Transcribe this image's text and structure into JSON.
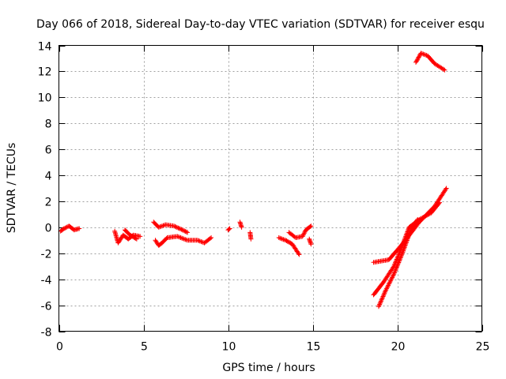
{
  "chart_data": {
    "type": "scatter",
    "title": "Day 066 of 2018, Sidereal Day-to-day VTEC variation (SDTVAR) for receiver esqu",
    "xlabel": "GPS time / hours",
    "ylabel": "SDTVAR / TECUs",
    "xlim": [
      0,
      25
    ],
    "ylim": [
      -8,
      14
    ],
    "xticks": [
      0,
      5,
      10,
      15,
      20,
      25
    ],
    "yticks": [
      -8,
      -6,
      -4,
      -2,
      0,
      2,
      4,
      6,
      8,
      10,
      12,
      14
    ],
    "xtick_labels": [
      "0",
      "5",
      "10",
      "15",
      "20",
      "25"
    ],
    "ytick_labels": [
      "-8",
      "-6",
      "-4",
      "-2",
      "0",
      "2",
      "4",
      "6",
      "8",
      "10",
      "12",
      "14"
    ],
    "grid": true,
    "marker": "plus",
    "marker_color": "#ff0000",
    "note": "Series are traced point trails (approximate vertices read from the plot); markers are drawn densely along each trail.",
    "series": [
      {
        "name": "arc-a",
        "points": [
          [
            0.1,
            -0.3
          ],
          [
            0.3,
            -0.1
          ],
          [
            0.6,
            0.1
          ],
          [
            0.9,
            -0.2
          ],
          [
            1.2,
            -0.1
          ]
        ]
      },
      {
        "name": "arc-b",
        "points": [
          [
            3.3,
            -0.3
          ],
          [
            3.5,
            -1.2
          ],
          [
            3.8,
            -0.6
          ],
          [
            4.1,
            -0.9
          ],
          [
            4.4,
            -0.6
          ],
          [
            4.8,
            -0.7
          ]
        ]
      },
      {
        "name": "arc-c",
        "points": [
          [
            3.9,
            -0.2
          ],
          [
            4.2,
            -0.6
          ],
          [
            4.6,
            -0.9
          ]
        ]
      },
      {
        "name": "arc-d",
        "points": [
          [
            5.6,
            0.4
          ],
          [
            5.9,
            0.0
          ],
          [
            6.3,
            0.2
          ],
          [
            6.8,
            0.1
          ],
          [
            7.3,
            -0.2
          ],
          [
            7.6,
            -0.4
          ]
        ]
      },
      {
        "name": "arc-e",
        "points": [
          [
            5.7,
            -1.0
          ],
          [
            5.9,
            -1.4
          ],
          [
            6.1,
            -1.2
          ],
          [
            6.4,
            -0.8
          ],
          [
            7.0,
            -0.7
          ],
          [
            7.6,
            -1.0
          ],
          [
            8.2,
            -1.0
          ],
          [
            8.6,
            -1.2
          ],
          [
            9.0,
            -0.8
          ]
        ]
      },
      {
        "name": "arc-f",
        "points": [
          [
            10.0,
            -0.2
          ],
          [
            10.1,
            -0.1
          ]
        ]
      },
      {
        "name": "arc-g",
        "points": [
          [
            10.7,
            0.4
          ],
          [
            10.8,
            0.0
          ]
        ]
      },
      {
        "name": "arc-h",
        "points": [
          [
            11.3,
            -0.4
          ],
          [
            11.35,
            -0.9
          ]
        ]
      },
      {
        "name": "arc-i",
        "points": [
          [
            13.0,
            -0.8
          ],
          [
            13.4,
            -1.0
          ],
          [
            13.8,
            -1.3
          ],
          [
            14.2,
            -2.1
          ]
        ]
      },
      {
        "name": "arc-j",
        "points": [
          [
            13.6,
            -0.4
          ],
          [
            14.0,
            -0.8
          ],
          [
            14.4,
            -0.7
          ],
          [
            14.6,
            -0.2
          ],
          [
            14.9,
            0.1
          ]
        ]
      },
      {
        "name": "arc-k",
        "points": [
          [
            14.8,
            -0.9
          ],
          [
            14.9,
            -1.3
          ]
        ]
      },
      {
        "name": "arc-l",
        "points": [
          [
            18.6,
            -2.7
          ],
          [
            19.5,
            -2.5
          ],
          [
            20.1,
            -1.6
          ],
          [
            20.6,
            -0.8
          ],
          [
            21.3,
            0.4
          ],
          [
            22.2,
            1.6
          ],
          [
            22.9,
            3.0
          ]
        ]
      },
      {
        "name": "arc-m",
        "points": [
          [
            18.6,
            -5.2
          ],
          [
            19.2,
            -4.2
          ],
          [
            19.8,
            -3.0
          ],
          [
            20.3,
            -1.4
          ],
          [
            20.7,
            0.0
          ],
          [
            21.3,
            0.6
          ],
          [
            22.0,
            1.1
          ],
          [
            22.5,
            1.9
          ]
        ]
      },
      {
        "name": "arc-n",
        "points": [
          [
            18.9,
            -6.1
          ],
          [
            19.3,
            -4.9
          ],
          [
            19.8,
            -3.6
          ],
          [
            20.3,
            -2.0
          ],
          [
            20.8,
            -0.2
          ],
          [
            21.2,
            0.6
          ]
        ]
      },
      {
        "name": "arc-o",
        "points": [
          [
            21.1,
            12.7
          ],
          [
            21.4,
            13.4
          ],
          [
            21.8,
            13.2
          ],
          [
            22.2,
            12.6
          ],
          [
            22.8,
            12.1
          ]
        ]
      }
    ]
  }
}
